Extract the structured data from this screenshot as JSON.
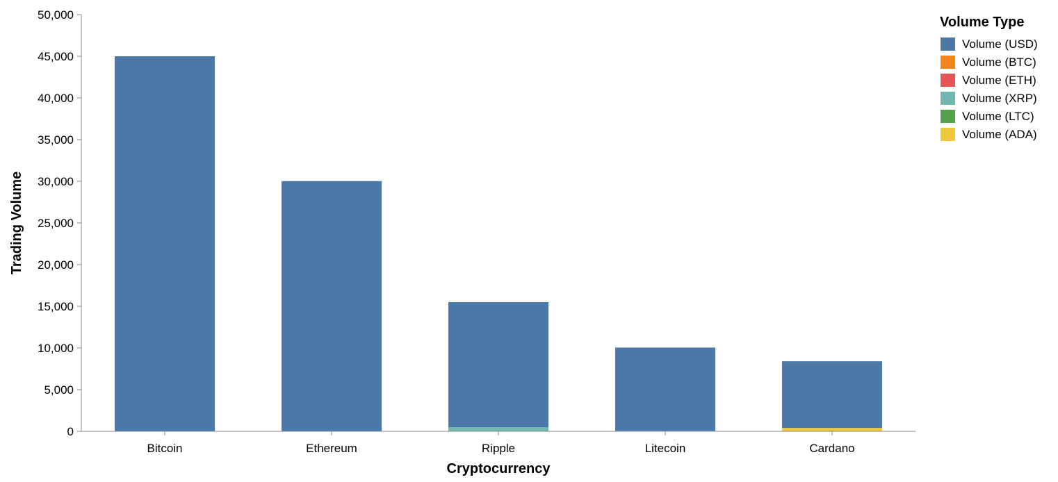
{
  "chart_data": {
    "type": "bar",
    "stacked": true,
    "categories": [
      "Bitcoin",
      "Ethereum",
      "Ripple",
      "Litecoin",
      "Cardano"
    ],
    "series": [
      {
        "name": "Volume (USD)",
        "color": "#4c78a8",
        "values": [
          45000,
          30000,
          15000,
          10000,
          8000
        ]
      },
      {
        "name": "Volume (BTC)",
        "color": "#f58518",
        "values": [
          1.2,
          0,
          0,
          0,
          0
        ]
      },
      {
        "name": "Volume (ETH)",
        "color": "#e45756",
        "values": [
          0,
          20,
          0,
          0,
          0
        ]
      },
      {
        "name": "Volume (XRP)",
        "color": "#72b7b2",
        "values": [
          0,
          0,
          500,
          0,
          0
        ]
      },
      {
        "name": "Volume (LTC)",
        "color": "#54a24b",
        "values": [
          0,
          0,
          0,
          50,
          0
        ]
      },
      {
        "name": "Volume (ADA)",
        "color": "#eeca3b",
        "values": [
          0,
          0,
          0,
          0,
          400
        ]
      }
    ],
    "xlabel": "Cryptocurrency",
    "ylabel": "Trading Volume",
    "ylim": [
      0,
      50000
    ],
    "yticks": [
      0,
      5000,
      10000,
      15000,
      20000,
      25000,
      30000,
      35000,
      40000,
      45000,
      50000
    ],
    "ytick_labels": [
      "0",
      "5,000",
      "10,000",
      "15,000",
      "20,000",
      "25,000",
      "30,000",
      "35,000",
      "40,000",
      "45,000",
      "50,000"
    ],
    "grid": false,
    "legend": {
      "title": "Volume Type",
      "placement": "top-right"
    }
  }
}
